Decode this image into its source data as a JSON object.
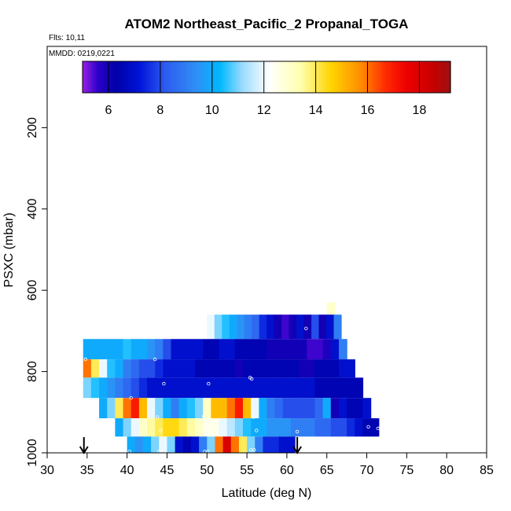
{
  "chart_data": {
    "type": "heatmap",
    "title": "ATOM2 Northeast_Pacific_2 Propanal_TOGA",
    "annotations": [
      "Flts: 10,11",
      "MMDD: 0219,0221"
    ],
    "xlabel": "Latitude (deg N)",
    "ylabel": "PSXC (mbar)",
    "xlim": [
      30,
      85
    ],
    "ylim": [
      1000,
      0
    ],
    "xticks": [
      30,
      35,
      40,
      45,
      50,
      55,
      60,
      65,
      70,
      75,
      80,
      85
    ],
    "yticks": [
      200,
      400,
      600,
      800,
      1000
    ],
    "colorbar": {
      "range": [
        5,
        19.2
      ],
      "ticks": [
        6,
        8,
        10,
        12,
        14,
        16,
        18
      ],
      "color_stops": [
        {
          "v": 5.0,
          "c": "#9a1fe6"
        },
        {
          "v": 5.6,
          "c": "#2a00c8"
        },
        {
          "v": 6.3,
          "c": "#0000a8"
        },
        {
          "v": 7.2,
          "c": "#0014d8"
        },
        {
          "v": 8.2,
          "c": "#2e5cf0"
        },
        {
          "v": 9.4,
          "c": "#2f8ff5"
        },
        {
          "v": 10.3,
          "c": "#00b8ff"
        },
        {
          "v": 11.2,
          "c": "#9fdcff"
        },
        {
          "v": 12.2,
          "c": "#ffffff"
        },
        {
          "v": 13.4,
          "c": "#ffffb0"
        },
        {
          "v": 14.6,
          "c": "#ffd400"
        },
        {
          "v": 15.8,
          "c": "#ff8800"
        },
        {
          "v": 16.7,
          "c": "#ff2a00"
        },
        {
          "v": 17.5,
          "c": "#ee0000"
        },
        {
          "v": 18.5,
          "c": "#c80000"
        },
        {
          "v": 19.2,
          "c": "#9c1010"
        }
      ]
    },
    "layers": [
      {
        "p_top": 630,
        "p_bot": 720,
        "lat_start": 65.0,
        "lat_end": 66.0,
        "values": [
          13
        ]
      },
      {
        "p_top": 660,
        "p_bot": 720,
        "lat_start": 50.0,
        "lat_end": 66.8,
        "values": [
          12,
          11,
          10.5,
          10,
          9.5,
          9,
          8.5,
          7.5,
          7,
          6,
          5.5,
          6,
          7,
          6,
          8,
          6,
          7,
          9
        ]
      },
      {
        "p_top": 720,
        "p_bot": 770,
        "lat_start": 34.5,
        "lat_end": 67.5,
        "values": [
          10,
          10,
          10,
          10,
          10,
          10.5,
          10,
          10,
          9.5,
          9,
          8,
          7,
          7,
          7,
          7,
          6.5,
          6.5,
          7,
          7,
          6.5,
          6.5,
          6.5,
          6.5,
          6,
          6,
          6,
          6,
          6,
          5.5,
          5.5,
          5.8,
          7,
          9
        ]
      },
      {
        "p_top": 770,
        "p_bot": 815,
        "lat_start": 34.5,
        "lat_end": 68.5,
        "values": [
          16,
          14,
          12,
          10.5,
          10,
          9,
          8.5,
          8,
          8,
          7.5,
          7,
          7,
          7,
          7,
          6.5,
          6.5,
          6.5,
          6.5,
          6.5,
          6,
          6.5,
          6.5,
          6.5,
          6.5,
          6.5,
          6.5,
          6.5,
          6,
          6,
          6.5,
          6.5,
          6.5,
          7,
          7
        ]
      },
      {
        "p_top": 815,
        "p_bot": 865,
        "lat_start": 34.5,
        "lat_end": 69.5,
        "values": [
          11,
          10.5,
          10,
          9.5,
          9,
          8.5,
          8,
          7.5,
          7,
          7,
          7,
          7,
          7,
          7,
          7,
          7,
          7,
          7,
          7,
          7,
          7,
          7,
          7,
          7,
          7,
          7,
          7,
          7,
          7,
          6.5,
          6.5,
          6.5,
          6.5,
          6.5,
          6.5
        ]
      },
      {
        "p_top": 865,
        "p_bot": 915,
        "lat_start": 36.5,
        "lat_end": 70.5,
        "values": [
          10,
          11,
          14,
          16,
          17,
          15,
          12,
          11,
          10,
          9,
          10,
          10.5,
          11,
          13,
          15,
          15,
          16,
          17,
          15,
          12,
          10,
          9,
          8.5,
          8,
          8,
          8,
          8,
          8.5,
          10,
          6,
          7,
          6.5,
          6.5,
          7
        ]
      },
      {
        "p_top": 915,
        "p_bot": 960,
        "lat_start": 38.5,
        "lat_end": 71.5,
        "values": [
          10,
          11,
          12,
          13,
          13.5,
          14,
          14.5,
          14.5,
          14,
          13.5,
          13,
          12.5,
          12.5,
          12,
          11.5,
          11,
          10.5,
          10,
          10,
          9.5,
          9.5,
          9.5,
          9,
          9,
          9,
          8.5,
          8.5,
          8,
          8,
          7.5,
          7,
          6.5,
          6.5
        ]
      },
      {
        "p_top": 960,
        "p_bot": 1000,
        "lat_start": 40.0,
        "lat_end": 61.0,
        "values": [
          10,
          9.5,
          10,
          11,
          12,
          11,
          7,
          6.5,
          7,
          9,
          11,
          16,
          18,
          16,
          14,
          11,
          9,
          7.5,
          7.5,
          7,
          7
        ]
      }
    ],
    "sample_points": [
      {
        "lat": 34.8,
        "p": 770
      },
      {
        "lat": 43.5,
        "p": 770
      },
      {
        "lat": 44.6,
        "p": 830
      },
      {
        "lat": 50.2,
        "p": 830
      },
      {
        "lat": 55.4,
        "p": 815
      },
      {
        "lat": 55.6,
        "p": 818
      },
      {
        "lat": 40.5,
        "p": 865
      },
      {
        "lat": 43.8,
        "p": 912
      },
      {
        "lat": 49.6,
        "p": 910
      },
      {
        "lat": 55.8,
        "p": 912
      },
      {
        "lat": 44.2,
        "p": 945
      },
      {
        "lat": 50.0,
        "p": 955
      },
      {
        "lat": 56.2,
        "p": 945
      },
      {
        "lat": 61.3,
        "p": 948
      },
      {
        "lat": 70.2,
        "p": 936
      },
      {
        "lat": 71.4,
        "p": 940
      },
      {
        "lat": 40.3,
        "p": 997
      },
      {
        "lat": 44.0,
        "p": 997
      },
      {
        "lat": 49.7,
        "p": 997
      },
      {
        "lat": 50.1,
        "p": 997
      },
      {
        "lat": 55.5,
        "p": 993
      },
      {
        "lat": 55.9,
        "p": 993
      },
      {
        "lat": 62.4,
        "p": 694
      }
    ],
    "arrows": [
      {
        "lat": 34.6
      },
      {
        "lat": 61.3
      }
    ]
  }
}
